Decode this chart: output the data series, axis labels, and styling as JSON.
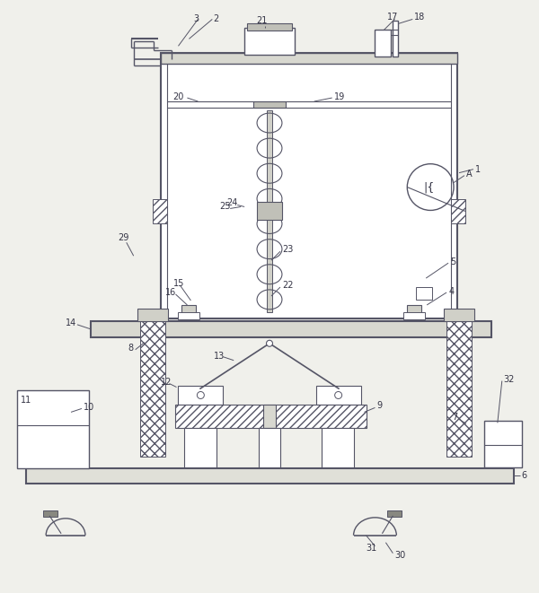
{
  "bg_color": "#f0f0eb",
  "line_color": "#555566",
  "label_color": "#333344",
  "fig_w": 6.0,
  "fig_h": 6.61,
  "dpi": 100
}
